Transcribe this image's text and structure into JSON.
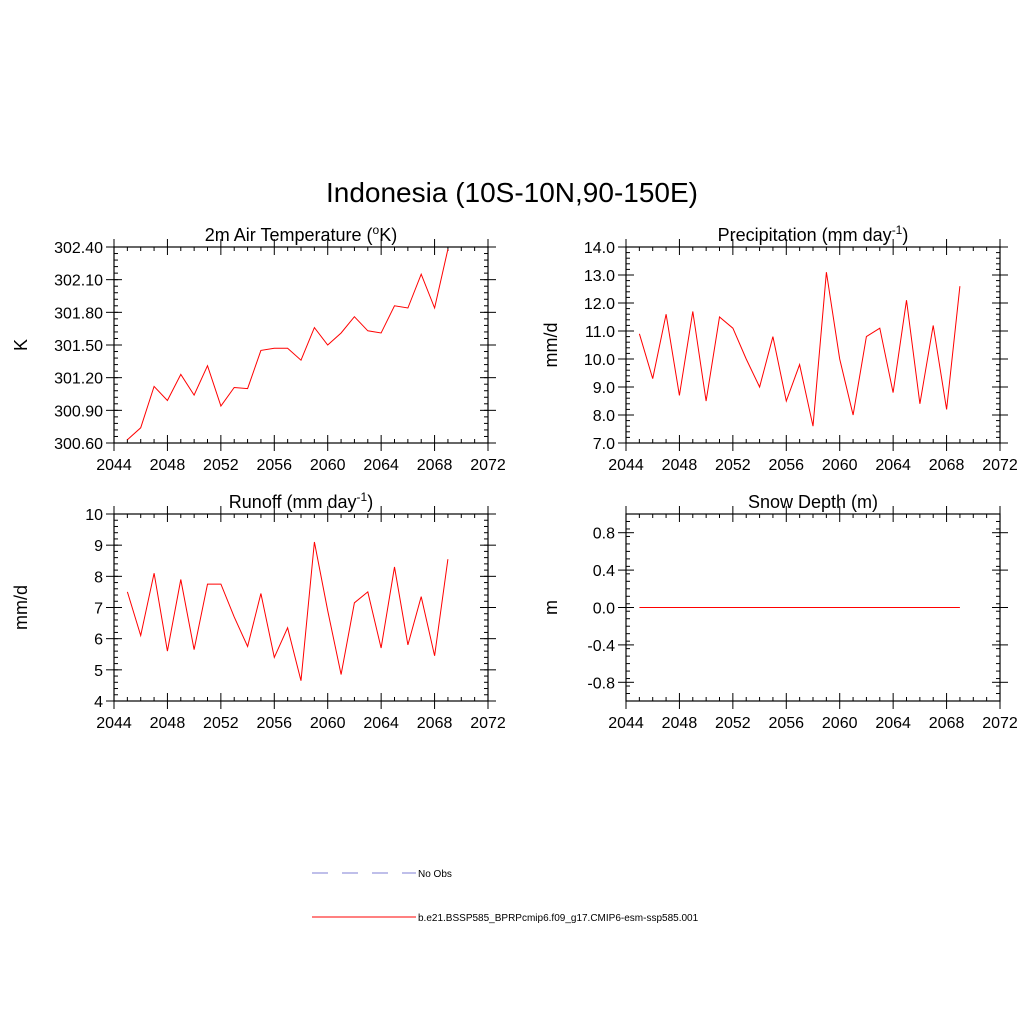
{
  "title": "Indonesia (10S-10N,90-150E)",
  "colors": {
    "model": "#ff0000",
    "obs": "#9999dd"
  },
  "legend": {
    "obs_label": "No Obs",
    "model_label": "b.e21.BSSP585_BPRPcmip6.f09_g17.CMIP6-esm-ssp585.001"
  },
  "chart_data": [
    {
      "type": "line",
      "title": "2m Air Temperature",
      "title_sup": "o",
      "title_post": "K)",
      "title_pre": "2m Air Temperature (",
      "ylabel": "K",
      "xlim": [
        2044,
        2072
      ],
      "ylim": [
        300.6,
        302.4
      ],
      "xticks": [
        2044,
        2048,
        2052,
        2056,
        2060,
        2064,
        2068,
        2072
      ],
      "yticks": [
        "300.60",
        "300.90",
        "301.20",
        "301.50",
        "301.80",
        "302.10",
        "302.40"
      ],
      "series": [
        {
          "x": [
            2045,
            2046,
            2047,
            2048,
            2049,
            2050,
            2051,
            2052,
            2053,
            2054,
            2055,
            2056,
            2057,
            2058,
            2059,
            2060,
            2061,
            2062,
            2063,
            2064,
            2065,
            2066,
            2067,
            2068,
            2069
          ],
          "y": [
            300.63,
            300.74,
            301.12,
            300.99,
            301.23,
            301.04,
            301.31,
            300.94,
            301.11,
            301.1,
            301.45,
            301.47,
            301.47,
            301.36,
            301.66,
            301.5,
            301.61,
            301.76,
            301.63,
            301.61,
            301.86,
            301.84,
            302.15,
            301.84,
            302.38
          ]
        }
      ]
    },
    {
      "type": "line",
      "title_pre": "Precipitation (mm day",
      "title_sup": "-1",
      "title_post": ")",
      "ylabel": "mm/d",
      "xlim": [
        2044,
        2072
      ],
      "ylim": [
        7.0,
        14.0
      ],
      "xticks": [
        2044,
        2048,
        2052,
        2056,
        2060,
        2064,
        2068,
        2072
      ],
      "yticks": [
        "7.0",
        "8.0",
        "9.0",
        "10.0",
        "11.0",
        "12.0",
        "13.0",
        "14.0"
      ],
      "series": [
        {
          "x": [
            2045,
            2046,
            2047,
            2048,
            2049,
            2050,
            2051,
            2052,
            2053,
            2054,
            2055,
            2056,
            2057,
            2058,
            2059,
            2060,
            2061,
            2062,
            2063,
            2064,
            2065,
            2066,
            2067,
            2068,
            2069
          ],
          "y": [
            10.9,
            9.3,
            11.6,
            8.7,
            11.7,
            8.5,
            11.5,
            11.1,
            10.0,
            9.0,
            10.8,
            8.5,
            9.8,
            7.6,
            13.1,
            10.0,
            8.0,
            10.8,
            11.1,
            8.8,
            12.1,
            8.4,
            11.2,
            8.2,
            12.6
          ]
        }
      ]
    },
    {
      "type": "line",
      "title_pre": "Runoff (mm day",
      "title_sup": "-1",
      "title_post": ")",
      "ylabel": "mm/d",
      "xlim": [
        2044,
        2072
      ],
      "ylim": [
        4,
        10
      ],
      "xticks": [
        2044,
        2048,
        2052,
        2056,
        2060,
        2064,
        2068,
        2072
      ],
      "yticks": [
        "4",
        "5",
        "6",
        "7",
        "8",
        "9",
        "10"
      ],
      "series": [
        {
          "x": [
            2045,
            2046,
            2047,
            2048,
            2049,
            2050,
            2051,
            2052,
            2053,
            2054,
            2055,
            2056,
            2057,
            2058,
            2059,
            2060,
            2061,
            2062,
            2063,
            2064,
            2065,
            2066,
            2067,
            2068,
            2069
          ],
          "y": [
            7.5,
            6.1,
            8.1,
            5.6,
            7.9,
            5.65,
            7.75,
            7.75,
            6.7,
            5.75,
            7.45,
            5.4,
            6.35,
            4.65,
            9.1,
            6.9,
            4.85,
            7.15,
            7.5,
            5.7,
            8.3,
            5.8,
            7.35,
            5.45,
            8.55
          ]
        }
      ]
    },
    {
      "type": "line",
      "title_pre": "Snow Depth (m)",
      "title_sup": "",
      "title_post": "",
      "ylabel": "m",
      "xlim": [
        2044,
        2072
      ],
      "ylim": [
        -1.0,
        1.0
      ],
      "xticks": [
        2044,
        2048,
        2052,
        2056,
        2060,
        2064,
        2068,
        2072
      ],
      "yticks": [
        "-0.8",
        "-0.4",
        "0.0",
        "0.4",
        "0.8"
      ],
      "ytick_values": [
        -0.8,
        -0.4,
        0.0,
        0.4,
        0.8
      ],
      "series": [
        {
          "x": [
            2045,
            2046,
            2047,
            2048,
            2049,
            2050,
            2051,
            2052,
            2053,
            2054,
            2055,
            2056,
            2057,
            2058,
            2059,
            2060,
            2061,
            2062,
            2063,
            2064,
            2065,
            2066,
            2067,
            2068,
            2069
          ],
          "y": [
            0,
            0,
            0,
            0,
            0,
            0,
            0,
            0,
            0,
            0,
            0,
            0,
            0,
            0,
            0,
            0,
            0,
            0,
            0,
            0,
            0,
            0,
            0,
            0,
            0
          ]
        }
      ]
    }
  ]
}
